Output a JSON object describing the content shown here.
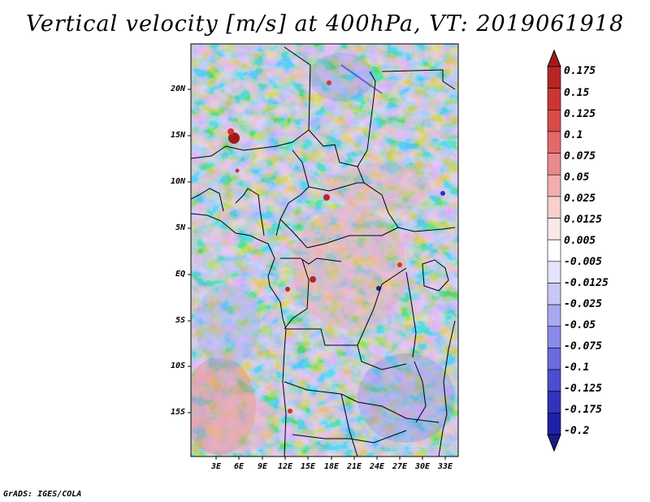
{
  "title": "Vertical velocity [m/s] at 400hPa, VT: 2019061918",
  "credit": "GrADS: IGES/COLA",
  "map": {
    "projection": "latlon",
    "lon_range": [
      -0.5,
      34.5
    ],
    "lat_range": [
      -21,
      24.3
    ],
    "y_axis": {
      "ticks": [
        20,
        15,
        10,
        5,
        0,
        -5,
        -10,
        -15
      ],
      "labels": [
        "20N",
        "15N",
        "10N",
        "5N",
        "EQ",
        "5S",
        "10S",
        "15S"
      ]
    },
    "x_axis": {
      "ticks": [
        3,
        6,
        9,
        12,
        15,
        18,
        21,
        24,
        27,
        30,
        33
      ],
      "labels": [
        "3E",
        "6E",
        "9E",
        "12E",
        "15E",
        "18E",
        "21E",
        "24E",
        "27E",
        "30E",
        "33E"
      ]
    }
  },
  "colorbar": {
    "labels": [
      "0.175",
      "0.15",
      "0.125",
      "0.1",
      "0.075",
      "0.05",
      "0.025",
      "0.0125",
      "0.005",
      "-0.005",
      "-0.0125",
      "-0.025",
      "-0.05",
      "-0.075",
      "-0.1",
      "-0.125",
      "-0.175",
      "-0.2"
    ],
    "colors": [
      "#a31a1a",
      "#b82525",
      "#cc3535",
      "#d94a4a",
      "#e36a6a",
      "#ea8a8a",
      "#f2aeae",
      "#f8d0d0",
      "#fde8e8",
      "#ffffff",
      "#e4e4fb",
      "#c8c8f6",
      "#a9a9f0",
      "#8a8ae8",
      "#6b6bde",
      "#4d4dd0",
      "#3232bb",
      "#2020a5",
      "#1a1a90"
    ]
  }
}
